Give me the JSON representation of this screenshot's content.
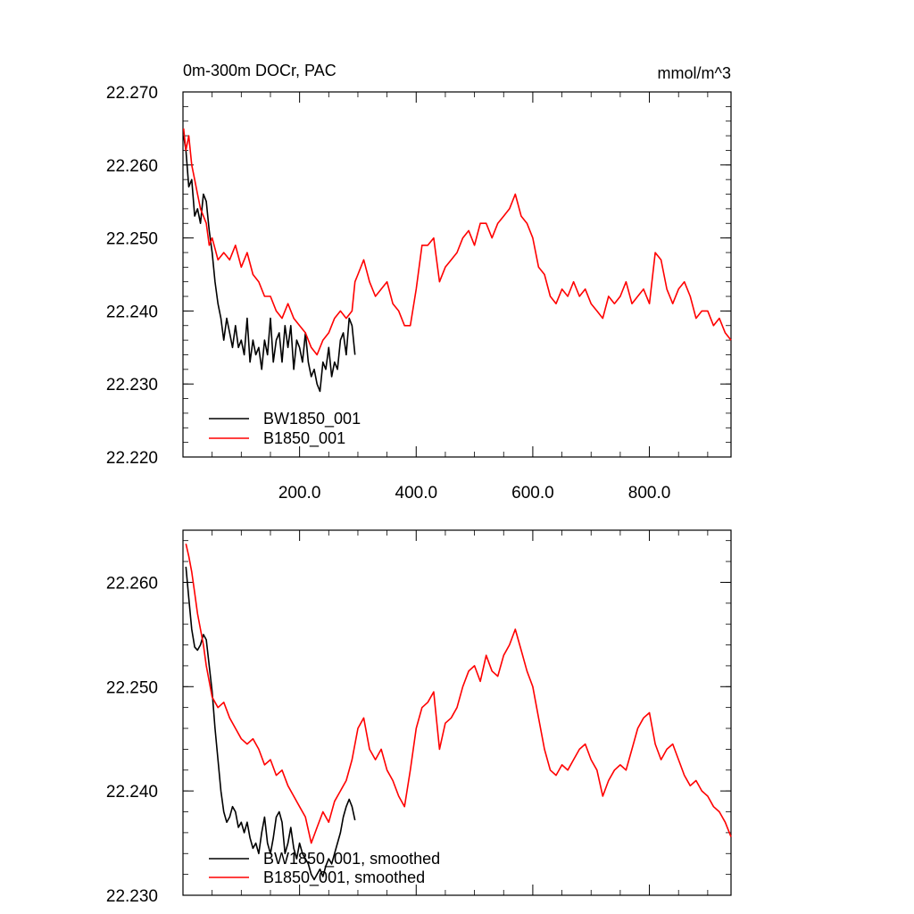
{
  "chart_data": [
    {
      "type": "line",
      "title": "0m-300m DOCr, PAC",
      "units": "mmol/m^3",
      "xlabel": "",
      "ylabel": "",
      "xlim": [
        0,
        940
      ],
      "ylim": [
        22.22,
        22.27
      ],
      "xticks": [
        200,
        400,
        600,
        800
      ],
      "xtick_labels": [
        "200.0",
        "400.0",
        "600.0",
        "800.0"
      ],
      "yticks": [
        22.22,
        22.23,
        22.24,
        22.25,
        22.26,
        22.27
      ],
      "ytick_labels": [
        "22.220",
        "22.230",
        "22.240",
        "22.250",
        "22.260",
        "22.270"
      ],
      "grid": false,
      "legend_position": "bottom-left",
      "colors": {
        "BW1850_001": "#000000",
        "B1850_001": "#ff0000"
      },
      "series": [
        {
          "name": "BW1850_001",
          "color": "#000000",
          "x": [
            1,
            5,
            10,
            15,
            20,
            25,
            30,
            35,
            40,
            45,
            50,
            55,
            60,
            65,
            70,
            75,
            80,
            85,
            90,
            95,
            100,
            105,
            110,
            115,
            120,
            125,
            130,
            135,
            140,
            145,
            150,
            155,
            160,
            165,
            170,
            175,
            180,
            185,
            190,
            195,
            200,
            205,
            210,
            215,
            220,
            225,
            230,
            235,
            240,
            245,
            250,
            255,
            260,
            265,
            270,
            275,
            280,
            285,
            290,
            295
          ],
          "y": [
            22.264,
            22.262,
            22.257,
            22.258,
            22.253,
            22.254,
            22.252,
            22.256,
            22.255,
            22.251,
            22.248,
            22.244,
            22.241,
            22.239,
            22.236,
            22.239,
            22.237,
            22.235,
            22.238,
            22.235,
            22.236,
            22.234,
            22.239,
            22.233,
            22.236,
            22.234,
            22.235,
            22.232,
            22.236,
            22.234,
            22.239,
            22.233,
            22.236,
            22.237,
            22.233,
            22.238,
            22.235,
            22.238,
            22.232,
            22.236,
            22.235,
            22.233,
            22.237,
            22.233,
            22.231,
            22.232,
            22.23,
            22.229,
            22.233,
            22.232,
            22.235,
            22.231,
            22.233,
            22.232,
            22.236,
            22.237,
            22.234,
            22.239,
            22.238,
            22.234
          ]
        },
        {
          "name": "B1850_001",
          "color": "#ff0000",
          "x": [
            1,
            5,
            10,
            15,
            20,
            25,
            30,
            35,
            40,
            45,
            50,
            60,
            70,
            80,
            90,
            100,
            110,
            120,
            130,
            140,
            150,
            160,
            170,
            180,
            190,
            200,
            210,
            220,
            230,
            240,
            250,
            260,
            270,
            280,
            290,
            295,
            300,
            310,
            320,
            330,
            340,
            350,
            360,
            370,
            380,
            390,
            400,
            410,
            420,
            430,
            440,
            450,
            460,
            470,
            480,
            490,
            500,
            510,
            520,
            530,
            540,
            550,
            560,
            570,
            580,
            590,
            600,
            610,
            620,
            630,
            640,
            650,
            660,
            670,
            680,
            690,
            700,
            710,
            720,
            730,
            740,
            750,
            760,
            770,
            780,
            790,
            800,
            810,
            820,
            830,
            840,
            850,
            860,
            870,
            880,
            890,
            900,
            910,
            920,
            930,
            940
          ],
          "y": [
            22.265,
            22.262,
            22.264,
            22.26,
            22.258,
            22.256,
            22.254,
            22.253,
            22.252,
            22.249,
            22.25,
            22.247,
            22.248,
            22.247,
            22.249,
            22.246,
            22.248,
            22.245,
            22.244,
            22.242,
            22.242,
            22.24,
            22.239,
            22.241,
            22.239,
            22.238,
            22.237,
            22.235,
            22.234,
            22.236,
            22.237,
            22.239,
            22.24,
            22.239,
            22.24,
            22.244,
            22.245,
            22.247,
            22.244,
            22.242,
            22.243,
            22.244,
            22.241,
            22.24,
            22.238,
            22.238,
            22.243,
            22.249,
            22.249,
            22.25,
            22.244,
            22.246,
            22.247,
            22.248,
            22.25,
            22.251,
            22.249,
            22.252,
            22.252,
            22.25,
            22.252,
            22.253,
            22.254,
            22.256,
            22.253,
            22.252,
            22.25,
            22.246,
            22.245,
            22.242,
            22.241,
            22.243,
            22.242,
            22.244,
            22.242,
            22.243,
            22.241,
            22.24,
            22.239,
            22.242,
            22.241,
            22.242,
            22.244,
            22.241,
            22.242,
            22.243,
            22.241,
            22.248,
            22.247,
            22.243,
            22.241,
            22.243,
            22.244,
            22.242,
            22.239,
            22.24,
            22.24,
            22.238,
            22.239,
            22.237,
            22.236
          ]
        }
      ]
    },
    {
      "type": "line",
      "title": "",
      "xlabel": "",
      "ylabel": "",
      "xlim": [
        0,
        940
      ],
      "ylim": [
        22.23,
        22.265
      ],
      "xticks": [
        200,
        400,
        600,
        800
      ],
      "yticks": [
        22.23,
        22.24,
        22.25,
        22.26
      ],
      "ytick_labels": [
        "22.230",
        "22.240",
        "22.250",
        "22.260"
      ],
      "grid": false,
      "legend_position": "bottom-left",
      "colors": {
        "BW1850_001, smoothed": "#000000",
        "B1850_001, smoothed": "#ff0000"
      },
      "series": [
        {
          "name": "BW1850_001, smoothed",
          "color": "#000000",
          "x": [
            5,
            10,
            15,
            20,
            25,
            30,
            35,
            40,
            45,
            50,
            55,
            60,
            65,
            70,
            75,
            80,
            85,
            90,
            95,
            100,
            105,
            110,
            115,
            120,
            125,
            130,
            135,
            140,
            145,
            150,
            155,
            160,
            165,
            170,
            175,
            180,
            185,
            190,
            195,
            200,
            205,
            210,
            215,
            220,
            225,
            230,
            235,
            240,
            245,
            250,
            255,
            260,
            265,
            270,
            275,
            280,
            285,
            290,
            295
          ],
          "y": [
            22.2615,
            22.2585,
            22.2555,
            22.2538,
            22.2535,
            22.254,
            22.255,
            22.2545,
            22.252,
            22.2495,
            22.246,
            22.243,
            22.24,
            22.238,
            22.237,
            22.2375,
            22.2385,
            22.238,
            22.2365,
            22.237,
            22.236,
            22.237,
            22.2355,
            22.2345,
            22.235,
            22.234,
            22.236,
            22.2375,
            22.235,
            22.234,
            22.2355,
            22.2375,
            22.238,
            22.237,
            22.234,
            22.235,
            22.2365,
            22.2345,
            22.2335,
            22.235,
            22.234,
            22.2335,
            22.233,
            22.232,
            22.2315,
            22.232,
            22.2325,
            22.2318,
            22.2328,
            22.2335,
            22.233,
            22.234,
            22.235,
            22.236,
            22.2375,
            22.2385,
            22.2392,
            22.2385,
            22.2372
          ]
        },
        {
          "name": "B1850_001, smoothed",
          "color": "#ff0000",
          "x": [
            5,
            10,
            15,
            20,
            25,
            30,
            35,
            40,
            45,
            50,
            60,
            70,
            80,
            90,
            100,
            110,
            120,
            130,
            140,
            150,
            160,
            170,
            180,
            190,
            200,
            210,
            220,
            230,
            240,
            250,
            260,
            270,
            280,
            290,
            300,
            310,
            320,
            330,
            340,
            350,
            360,
            370,
            380,
            390,
            400,
            410,
            420,
            430,
            440,
            450,
            460,
            470,
            480,
            490,
            500,
            510,
            520,
            530,
            540,
            550,
            560,
            570,
            580,
            590,
            600,
            610,
            620,
            630,
            640,
            650,
            660,
            670,
            680,
            690,
            700,
            710,
            720,
            730,
            740,
            750,
            760,
            770,
            780,
            790,
            800,
            810,
            820,
            830,
            840,
            850,
            860,
            870,
            880,
            890,
            900,
            910,
            920,
            930,
            940
          ],
          "y": [
            22.2637,
            22.2625,
            22.261,
            22.259,
            22.257,
            22.2555,
            22.254,
            22.252,
            22.2505,
            22.249,
            22.248,
            22.2485,
            22.247,
            22.246,
            22.245,
            22.2445,
            22.245,
            22.244,
            22.2425,
            22.243,
            22.2415,
            22.242,
            22.2405,
            22.2395,
            22.2385,
            22.2375,
            22.235,
            22.2365,
            22.238,
            22.237,
            22.239,
            22.24,
            22.241,
            22.243,
            22.246,
            22.247,
            22.244,
            22.243,
            22.244,
            22.242,
            22.241,
            22.2395,
            22.2385,
            22.242,
            22.246,
            22.248,
            22.2485,
            22.2495,
            22.244,
            22.2465,
            22.247,
            22.248,
            22.25,
            22.2515,
            22.252,
            22.2505,
            22.253,
            22.2515,
            22.251,
            22.253,
            22.254,
            22.2555,
            22.2535,
            22.2515,
            22.25,
            22.247,
            22.244,
            22.242,
            22.2415,
            22.2425,
            22.242,
            22.243,
            22.244,
            22.2445,
            22.243,
            22.242,
            22.2395,
            22.241,
            22.242,
            22.2425,
            22.242,
            22.244,
            22.246,
            22.247,
            22.2475,
            22.2445,
            22.243,
            22.244,
            22.2445,
            22.243,
            22.2415,
            22.2405,
            22.241,
            22.24,
            22.2395,
            22.2385,
            22.238,
            22.237,
            22.2356
          ]
        }
      ]
    }
  ]
}
